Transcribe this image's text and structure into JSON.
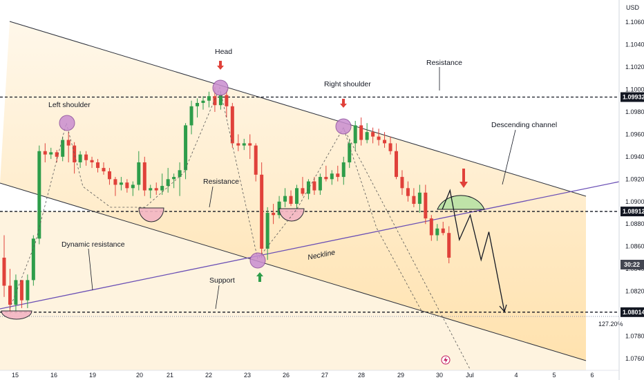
{
  "chart_data": {
    "type": "candlestick",
    "currency": "USD",
    "y_ticks": [
      "1.10600",
      "1.10400",
      "1.10200",
      "1.10000",
      "1.09800",
      "1.09600",
      "1.09400",
      "1.09200",
      "1.09000",
      "1.08800",
      "1.08600",
      "1.08400",
      "1.08200",
      "1.08000",
      "1.07800",
      "1.07600"
    ],
    "x_ticks": [
      "15",
      "16",
      "19",
      "20",
      "21",
      "22",
      "23",
      "26",
      "27",
      "28",
      "29",
      "30",
      "Jul",
      "4",
      "5",
      "6"
    ],
    "ylim": [
      1.0752,
      1.1073
    ],
    "levels": [
      {
        "name": "resistance",
        "value": 1.09932,
        "label": "1.09932"
      },
      {
        "name": "neckline-level",
        "value": 1.08912,
        "label": "1.08912"
      },
      {
        "name": "support",
        "value": 1.08014,
        "label": "1.08014"
      }
    ],
    "current_time_tag": "30:22",
    "fib_label": "127.20%",
    "annotations": {
      "head": "Head",
      "left_shoulder": "Left shoulder",
      "right_shoulder": "Right shoulder",
      "resistance_top": "Resistance",
      "resistance_mid": "Resistance",
      "descending_channel": "Descending channel",
      "neckline": "Neckline",
      "dynamic_resistance": "Dynamic resistance",
      "support": "Support"
    },
    "candles": [
      [
        1.085,
        1.087,
        1.0815,
        1.0825
      ],
      [
        1.0825,
        1.084,
        1.08,
        1.0808
      ],
      [
        1.0808,
        1.0835,
        1.08,
        1.083
      ],
      [
        1.083,
        1.083,
        1.0805,
        1.0812
      ],
      [
        1.0812,
        1.0835,
        1.0805,
        1.083
      ],
      [
        1.083,
        1.087,
        1.0825,
        1.0867
      ],
      [
        1.0867,
        1.095,
        1.0862,
        1.0945
      ],
      [
        1.0945,
        1.0952,
        1.0935,
        1.0942
      ],
      [
        1.0942,
        1.0948,
        1.0938,
        1.0944
      ],
      [
        1.0944,
        1.0946,
        1.0935,
        1.094
      ],
      [
        1.094,
        1.0958,
        1.0936,
        1.0955
      ],
      [
        1.0955,
        1.0962,
        1.0935,
        1.095
      ],
      [
        1.095,
        1.0953,
        1.0925,
        1.0935
      ],
      [
        1.0935,
        1.0945,
        1.093,
        1.0942
      ],
      [
        1.0942,
        1.0945,
        1.0932,
        1.0937
      ],
      [
        1.0937,
        1.094,
        1.093,
        1.0935
      ],
      [
        1.0935,
        1.0938,
        1.0926,
        1.093
      ],
      [
        1.093,
        1.0935,
        1.0924,
        1.0927
      ],
      [
        1.0927,
        1.093,
        1.0915,
        1.092
      ],
      [
        1.092,
        1.0922,
        1.0905,
        1.0915
      ],
      [
        1.0915,
        1.0922,
        1.091,
        1.0917
      ],
      [
        1.0917,
        1.092,
        1.0908,
        1.0912
      ],
      [
        1.0912,
        1.0918,
        1.0905,
        1.0915
      ],
      [
        1.0915,
        1.0945,
        1.091,
        1.0935
      ],
      [
        1.0935,
        1.094,
        1.0905,
        1.091
      ],
      [
        1.091,
        1.0915,
        1.0903,
        1.0912
      ],
      [
        1.0912,
        1.0917,
        1.0906,
        1.091
      ],
      [
        1.091,
        1.0925,
        1.0906,
        1.0914
      ],
      [
        1.0914,
        1.093,
        1.0908,
        1.092
      ],
      [
        1.092,
        1.0925,
        1.0912,
        1.0922
      ],
      [
        1.0922,
        1.0935,
        1.0905,
        1.0928
      ],
      [
        1.0928,
        1.097,
        1.092,
        1.0968
      ],
      [
        1.0968,
        1.099,
        1.096,
        1.0985
      ],
      [
        1.0985,
        1.0992,
        1.0975,
        1.0988
      ],
      [
        1.0988,
        1.0994,
        1.0982,
        1.099
      ],
      [
        1.099,
        1.0998,
        1.0984,
        1.0994
      ],
      [
        1.0994,
        1.1002,
        1.098,
        1.0986
      ],
      [
        1.0986,
        1.0998,
        1.0982,
        1.0995
      ],
      [
        1.0995,
        1.1,
        1.0975,
        1.0985
      ],
      [
        1.0985,
        1.0988,
        1.0948,
        1.0952
      ],
      [
        1.0952,
        1.096,
        1.0945,
        1.095
      ],
      [
        1.095,
        1.0956,
        1.0946,
        1.0952
      ],
      [
        1.0952,
        1.096,
        1.0938,
        1.095
      ],
      [
        1.095,
        1.0952,
        1.0918,
        1.0924
      ],
      [
        1.0924,
        1.0935,
        1.085,
        1.0858
      ],
      [
        1.0858,
        1.0895,
        1.0848,
        1.089
      ],
      [
        1.089,
        1.0898,
        1.088,
        1.0888
      ],
      [
        1.0888,
        1.0905,
        1.0885,
        1.09
      ],
      [
        1.09,
        1.0912,
        1.0895,
        1.0905
      ],
      [
        1.0905,
        1.091,
        1.0896,
        1.0898
      ],
      [
        1.0898,
        1.0915,
        1.0893,
        1.0912
      ],
      [
        1.0912,
        1.0922,
        1.0905,
        1.0907
      ],
      [
        1.0907,
        1.092,
        1.0902,
        1.0918
      ],
      [
        1.0918,
        1.0922,
        1.0906,
        1.091
      ],
      [
        1.091,
        1.0925,
        1.0906,
        1.0922
      ],
      [
        1.0922,
        1.0932,
        1.0918,
        1.092
      ],
      [
        1.092,
        1.0928,
        1.0915,
        1.0925
      ],
      [
        1.0925,
        1.0932,
        1.0918,
        1.0922
      ],
      [
        1.0922,
        1.094,
        1.0915,
        1.0935
      ],
      [
        1.0935,
        1.0955,
        1.093,
        1.0952
      ],
      [
        1.0952,
        1.0972,
        1.0945,
        1.0968
      ],
      [
        1.0968,
        1.0975,
        1.095,
        1.0955
      ],
      [
        1.0955,
        1.097,
        1.0952,
        1.0962
      ],
      [
        1.0962,
        1.0966,
        1.0952,
        1.0958
      ],
      [
        1.0958,
        1.0965,
        1.095,
        1.0955
      ],
      [
        1.0955,
        1.0962,
        1.0948,
        1.0952
      ],
      [
        1.0952,
        1.0958,
        1.0942,
        1.0945
      ],
      [
        1.0945,
        1.0952,
        1.092,
        1.0922
      ],
      [
        1.0922,
        1.0928,
        1.0906,
        1.0912
      ],
      [
        1.0912,
        1.0918,
        1.09,
        1.0905
      ],
      [
        1.0905,
        1.0912,
        1.0895,
        1.0898
      ],
      [
        1.0898,
        1.0915,
        1.089,
        1.0908
      ],
      [
        1.0908,
        1.0915,
        1.088,
        1.0885
      ],
      [
        1.0885,
        1.0888,
        1.0865,
        1.087
      ],
      [
        1.087,
        1.088,
        1.0865,
        1.0876
      ],
      [
        1.0876,
        1.0882,
        1.087,
        1.0872
      ],
      [
        1.0872,
        1.0878,
        1.0845,
        1.085
      ]
    ],
    "projection": [
      [
        0,
        1.0893
      ],
      [
        2.5,
        1.091
      ],
      [
        5.5,
        1.0866
      ],
      [
        9,
        1.0888
      ],
      [
        12.5,
        1.0848
      ],
      [
        15,
        1.0873
      ],
      [
        20,
        1.0802
      ]
    ]
  }
}
